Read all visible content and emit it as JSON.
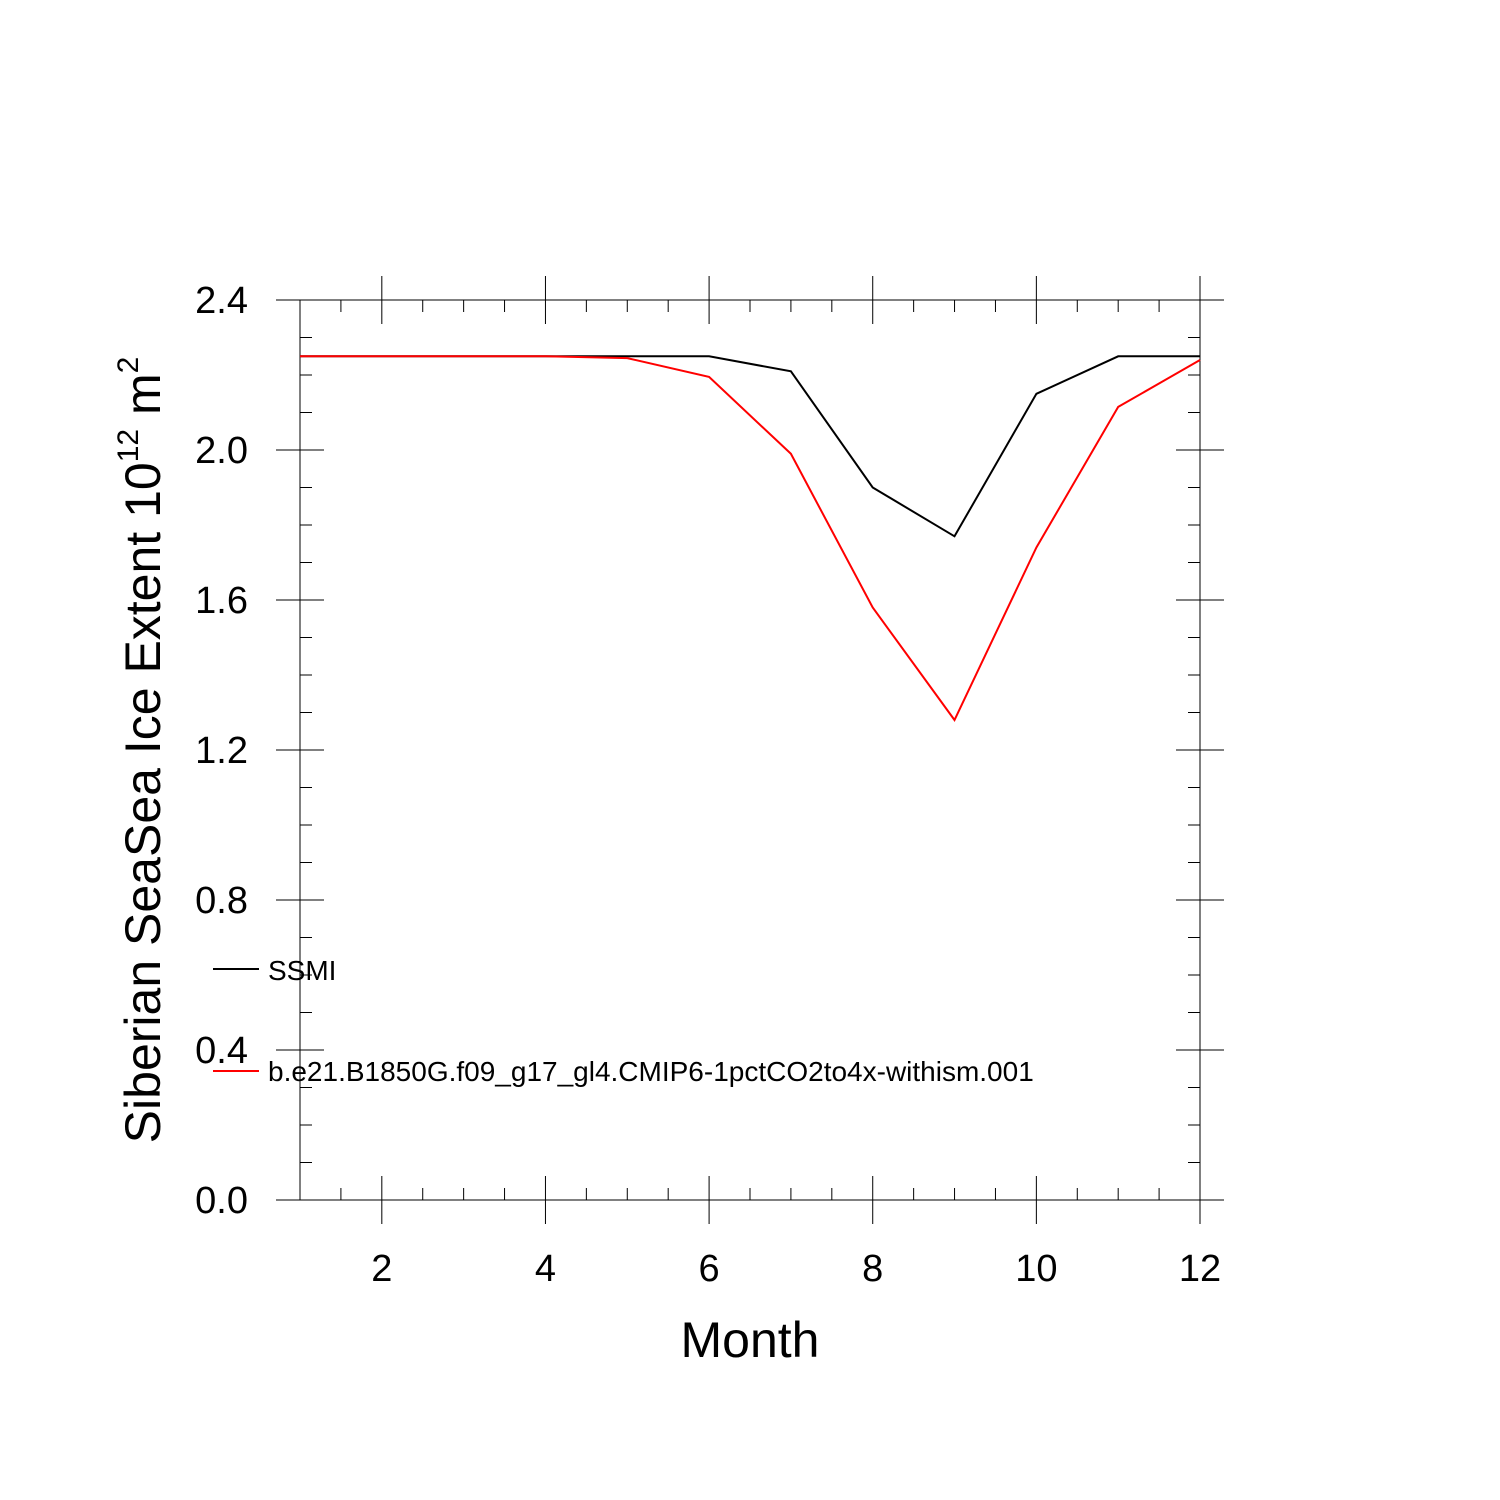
{
  "chart_data": {
    "type": "line",
    "xlabel": "Month",
    "ylabel_text": "Siberian SeaSea Ice Extent 10",
    "ylabel_sup1": "12",
    "ylabel_unit": " m",
    "ylabel_sup2": "2",
    "xlim": [
      1,
      12
    ],
    "ylim": [
      0.0,
      2.4
    ],
    "x_ticks": [
      2,
      4,
      6,
      8,
      10,
      12
    ],
    "x_tick_labels": [
      "2",
      "4",
      "6",
      "8",
      "10",
      "12"
    ],
    "y_ticks": [
      0.0,
      0.4,
      0.8,
      1.2,
      1.6,
      2.0,
      2.4
    ],
    "y_tick_labels": [
      "0.0",
      "0.4",
      "0.8",
      "1.2",
      "1.6",
      "2.0",
      "2.4"
    ],
    "x": [
      1,
      2,
      3,
      4,
      5,
      6,
      7,
      8,
      9,
      10,
      11,
      12
    ],
    "series": [
      {
        "name": "SSMI",
        "color": "#000000",
        "values": [
          2.25,
          2.25,
          2.25,
          2.25,
          2.25,
          2.25,
          2.21,
          1.9,
          1.77,
          2.15,
          2.25,
          2.25
        ]
      },
      {
        "name": "b.e21.B1850G.f09_g17_gl4.CMIP6-1pctCO2to4x-withism.001",
        "color": "#ff0000",
        "values": [
          2.25,
          2.25,
          2.25,
          2.25,
          2.245,
          2.195,
          1.99,
          1.58,
          1.28,
          1.74,
          2.115,
          2.24
        ]
      }
    ],
    "legend_placement": "lower-left"
  }
}
